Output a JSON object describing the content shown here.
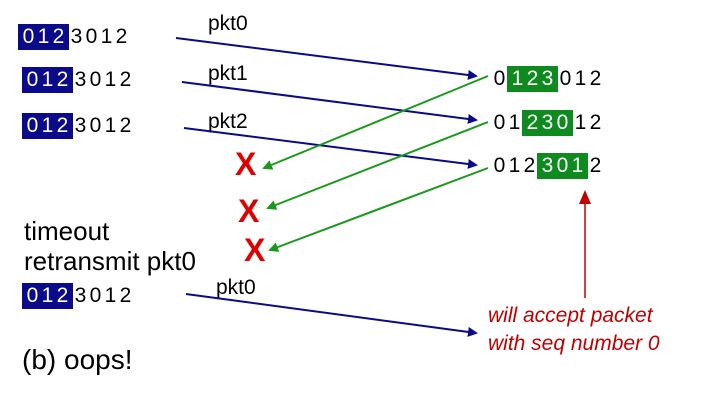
{
  "sender_rows": [
    {
      "window": [
        "0",
        "1",
        "2"
      ],
      "rest": [
        "3",
        "0",
        "1",
        "2"
      ],
      "packet": "pkt0"
    },
    {
      "window": [
        "0",
        "1",
        "2"
      ],
      "rest": [
        "3",
        "0",
        "1",
        "2"
      ],
      "packet": "pkt1"
    },
    {
      "window": [
        "0",
        "1",
        "2"
      ],
      "rest": [
        "3",
        "0",
        "1",
        "2"
      ],
      "packet": "pkt2"
    }
  ],
  "receiver_rows": [
    {
      "before": [
        "0"
      ],
      "window": [
        "1",
        "2",
        "3"
      ],
      "after": [
        "0",
        "1",
        "2"
      ]
    },
    {
      "before": [
        "0",
        "1"
      ],
      "window": [
        "2",
        "3",
        "0"
      ],
      "after": [
        "1",
        "2"
      ]
    },
    {
      "before": [
        "0",
        "1",
        "2"
      ],
      "window": [
        "3",
        "0",
        "1"
      ],
      "after": [
        "2"
      ]
    }
  ],
  "lost_ack_marks": [
    "X",
    "X",
    "X"
  ],
  "timeout_text": "timeout",
  "retransmit_text": "retransmit pkt0",
  "retransmit_row": {
    "window": [
      "0",
      "1",
      "2"
    ],
    "rest": [
      "3",
      "0",
      "1",
      "2"
    ],
    "packet": "pkt0"
  },
  "note_lines": [
    "will accept packet",
    "with seq number 0"
  ],
  "caption": "(b) oops!",
  "colors": {
    "sender_window": "#0a0a8a",
    "receiver_window": "#0e8a1e",
    "packet_arrow": "#0a0a8a",
    "ack_arrow": "#1a9a1a",
    "loss_mark": "#e00000",
    "note": "#c00000"
  }
}
